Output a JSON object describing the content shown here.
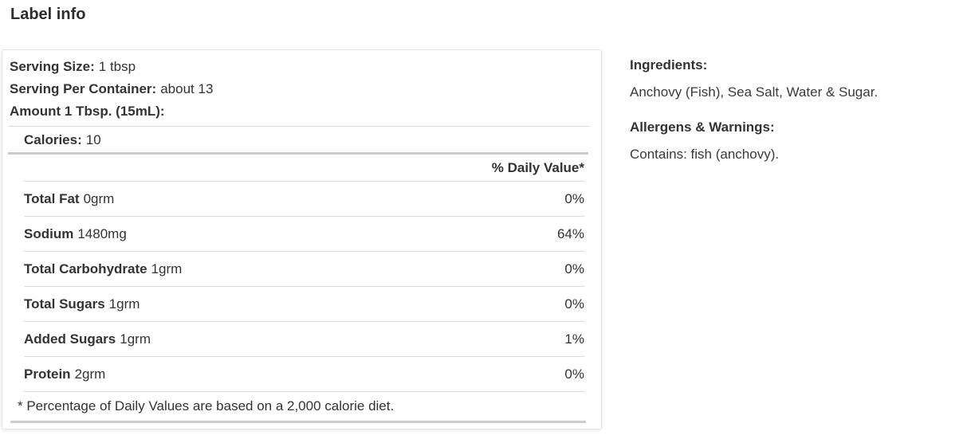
{
  "page": {
    "title": "Label info"
  },
  "nutrition_panel": {
    "serving_size_label": "Serving Size:",
    "serving_size_value": "1 tbsp",
    "serving_per_container_label": "Serving Per Container:",
    "serving_per_container_value": "about 13",
    "amount_label": "Amount 1 Tbsp. (15mL):",
    "calories_label": "Calories:",
    "calories_value": "10",
    "daily_value_header": "% Daily Value*",
    "rows": [
      {
        "name": "Total Fat",
        "amount": "0grm",
        "daily_value": "0%"
      },
      {
        "name": "Sodium",
        "amount": "1480mg",
        "daily_value": "64%"
      },
      {
        "name": "Total Carbohydrate",
        "amount": "1grm",
        "daily_value": "0%"
      },
      {
        "name": "Total Sugars",
        "amount": "1grm",
        "daily_value": "0%"
      },
      {
        "name": "Added Sugars",
        "amount": "1grm",
        "daily_value": "1%"
      },
      {
        "name": "Protein",
        "amount": "2grm",
        "daily_value": "0%"
      }
    ],
    "footnote": "* Percentage of Daily Values are based on a 2,000 calorie diet."
  },
  "details": {
    "ingredients_heading": "Ingredients:",
    "ingredients_text": "Anchovy (Fish), Sea Salt, Water & Sugar.",
    "allergens_heading": "Allergens & Warnings:",
    "allergens_text": "Contains: fish (anchovy)."
  },
  "colors": {
    "text": "#333333",
    "divider_thin": "#dcdcdc",
    "divider_thick": "#cccccc",
    "panel_border": "#e6e6e6"
  }
}
